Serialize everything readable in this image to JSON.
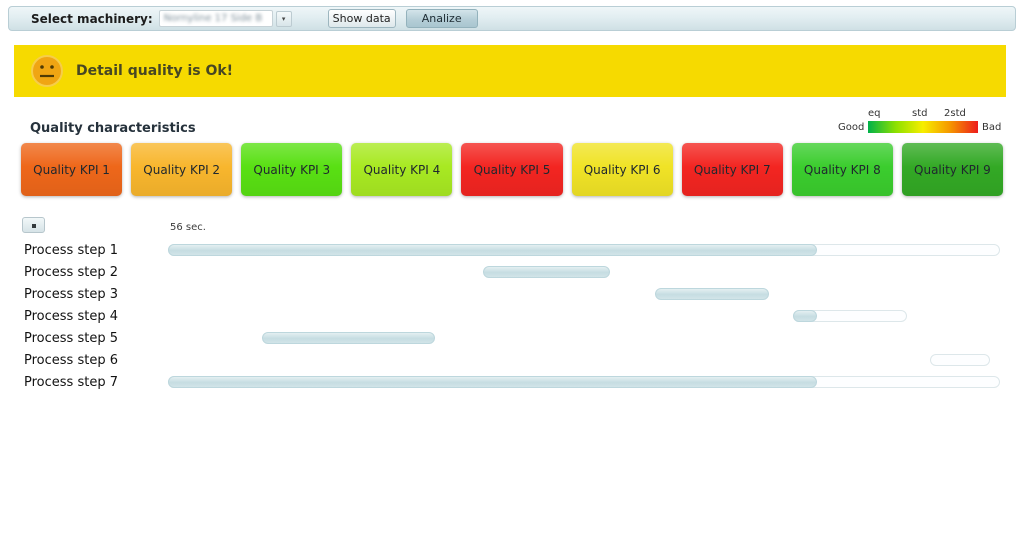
{
  "toolbar": {
    "machinery_label": "Select machinery:",
    "machinery_value": "Nornyline 17 Side B",
    "show_data_label": "Show data",
    "analyze_label": "Analize"
  },
  "banner": {
    "message": "Detail quality is Ok!",
    "background": "#f6da00",
    "face_color": "#f0a513"
  },
  "section": {
    "title": "Quality characteristics"
  },
  "legend": {
    "ticks": [
      "eq",
      "std",
      "2std"
    ],
    "good": "Good",
    "bad": "Bad",
    "gradient": [
      "#00b14a",
      "#8ce000",
      "#f7ee00",
      "#f59500",
      "#ed1c1c"
    ]
  },
  "kpis": [
    {
      "label": "Quality KPI 1",
      "color": "#ee671a"
    },
    {
      "label": "Quality KPI 2",
      "color": "#f8b62d"
    },
    {
      "label": "Quality KPI 3",
      "color": "#59e013"
    },
    {
      "label": "Quality KPI 4",
      "color": "#a8e922"
    },
    {
      "label": "Quality KPI 5",
      "color": "#f32521"
    },
    {
      "label": "Quality KPI 6",
      "color": "#f0e326"
    },
    {
      "label": "Quality KPI 7",
      "color": "#f32521"
    },
    {
      "label": "Quality KPI 8",
      "color": "#3bcd2e"
    },
    {
      "label": "Quality KPI 9",
      "color": "#33a925"
    }
  ],
  "chart": {
    "time_label": "56 sec.",
    "bar_fill_color": "#cfe2e6",
    "rows": [
      {
        "label": "Process step 1",
        "track": [
          0,
          100
        ],
        "fill": [
          0,
          78
        ]
      },
      {
        "label": "Process step 2",
        "track": null,
        "fill": [
          37.9,
          53.1
        ]
      },
      {
        "label": "Process step 3",
        "track": null,
        "fill": [
          58.5,
          72.2
        ]
      },
      {
        "label": "Process step 4",
        "track": [
          75.1,
          88.8
        ],
        "fill": [
          75.1,
          78
        ]
      },
      {
        "label": "Process step 5",
        "track": null,
        "fill": [
          11.3,
          32.1
        ]
      },
      {
        "label": "Process step 6",
        "track": [
          91.6,
          98.8
        ],
        "fill": null
      },
      {
        "label": "Process step 7",
        "track": [
          0,
          100
        ],
        "fill": [
          0,
          78
        ]
      }
    ]
  }
}
